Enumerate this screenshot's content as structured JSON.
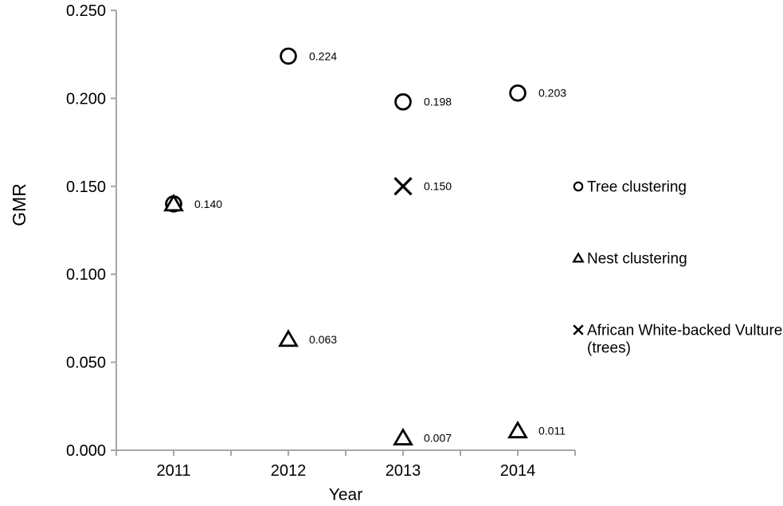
{
  "chart_data": {
    "type": "scatter",
    "title": "",
    "xlabel": "Year",
    "ylabel": "GMR",
    "grid": false,
    "legend_position": "right",
    "x_axis": {
      "min": 2010.5,
      "max": 2014.5,
      "tick_step": 0.5,
      "labeled_ticks": [
        2011,
        2012,
        2013,
        2014
      ]
    },
    "y_axis": {
      "min": 0.0,
      "max": 0.25,
      "tick_step": 0.05,
      "tick_labels": [
        "0.000",
        "0.050",
        "0.100",
        "0.150",
        "0.200",
        "0.250"
      ]
    },
    "series": [
      {
        "name": "Tree clustering",
        "marker": "circle",
        "points": [
          {
            "x": 2011,
            "y": 0.14,
            "label": "0.140"
          },
          {
            "x": 2012,
            "y": 0.224,
            "label": "0.224"
          },
          {
            "x": 2013,
            "y": 0.198,
            "label": "0.198"
          },
          {
            "x": 2014,
            "y": 0.203,
            "label": "0.203"
          }
        ]
      },
      {
        "name": "Nest clustering",
        "marker": "triangle",
        "points": [
          {
            "x": 2011,
            "y": 0.14,
            "label": null
          },
          {
            "x": 2012,
            "y": 0.063,
            "label": "0.063"
          },
          {
            "x": 2013,
            "y": 0.007,
            "label": "0.007"
          },
          {
            "x": 2014,
            "y": 0.011,
            "label": "0.011"
          }
        ]
      },
      {
        "name": "African White-backed Vulture (trees)",
        "marker": "x",
        "points": [
          {
            "x": 2013,
            "y": 0.15,
            "label": "0.150"
          }
        ]
      }
    ],
    "legend": {
      "entries": [
        {
          "marker": "circle",
          "lines": [
            "Tree clustering"
          ]
        },
        {
          "marker": "triangle",
          "lines": [
            "Nest clustering"
          ]
        },
        {
          "marker": "x",
          "lines": [
            "African White-backed Vulture",
            "(trees)"
          ]
        }
      ]
    },
    "colors": {
      "marker": "#000000",
      "marker_fill": "#ffffff",
      "axis": "#a6a6a6",
      "text": "#000000"
    }
  }
}
